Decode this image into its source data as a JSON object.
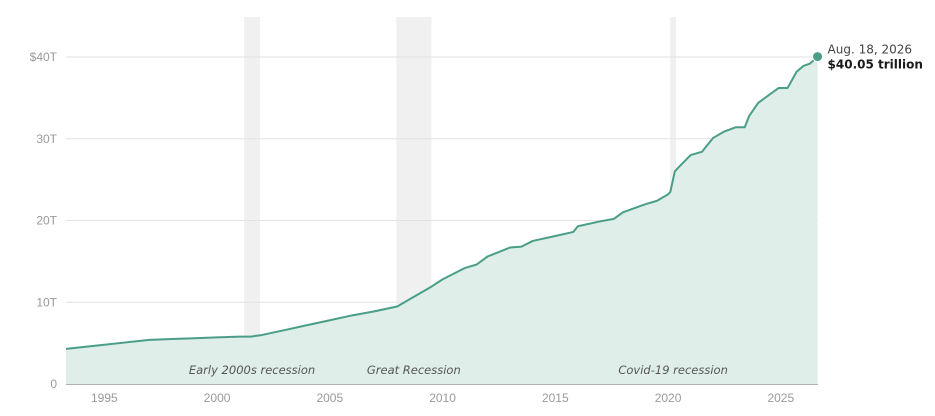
{
  "chart_data": {
    "type": "area",
    "title": "",
    "xlabel": "",
    "ylabel": "",
    "xlim": [
      1993.3,
      2026.65
    ],
    "ylim": [
      0,
      40
    ],
    "grid": true,
    "colors": {
      "line": "#4a9e88",
      "fill": "#dfeee9",
      "recession": "#f0f0f0",
      "grid": "#e2e2e2",
      "axis": "#b0b0b0"
    },
    "x_ticks": [
      {
        "value": 1995,
        "label": "1995"
      },
      {
        "value": 2000,
        "label": "2000"
      },
      {
        "value": 2005,
        "label": "2005"
      },
      {
        "value": 2010,
        "label": "2010"
      },
      {
        "value": 2015,
        "label": "2015"
      },
      {
        "value": 2020,
        "label": "2020"
      },
      {
        "value": 2025,
        "label": "2025"
      }
    ],
    "y_ticks": [
      {
        "value": 0,
        "label": "0"
      },
      {
        "value": 10,
        "label": "10T"
      },
      {
        "value": 20,
        "label": "20T"
      },
      {
        "value": 30,
        "label": "30T"
      },
      {
        "value": 40,
        "label": "$40T"
      }
    ],
    "recessions": [
      {
        "label": "Early 2000s recession",
        "start": 2001.2,
        "end": 2001.9
      },
      {
        "label": "Great Recession",
        "start": 2007.95,
        "end": 2009.5
      },
      {
        "label": "Covid-19 recession",
        "start": 2020.1,
        "end": 2020.35
      }
    ],
    "series": [
      {
        "unit": "trillion $",
        "x": [
          1993.3,
          1995,
          1996,
          1997,
          1998,
          1999,
          2000,
          2001,
          2001.5,
          2002,
          2003,
          2004,
          2005,
          2006,
          2007,
          2008,
          2008.5,
          2009,
          2009.5,
          2010,
          2011,
          2011.5,
          2012,
          2013,
          2013.5,
          2014,
          2015,
          2015.8,
          2016,
          2017,
          2017.6,
          2018,
          2019,
          2019.5,
          2020,
          2020.1,
          2020.3,
          2020.5,
          2021,
          2021.5,
          2022,
          2022.5,
          2023,
          2023.4,
          2023.6,
          2024,
          2024.5,
          2024.9,
          2025,
          2025.3,
          2025.5,
          2025.7,
          2026,
          2026.3,
          2026.63
        ],
        "y": [
          4.3,
          4.8,
          5.1,
          5.4,
          5.5,
          5.6,
          5.7,
          5.8,
          5.8,
          6.0,
          6.6,
          7.2,
          7.8,
          8.4,
          8.9,
          9.5,
          10.3,
          11.1,
          11.9,
          12.8,
          14.2,
          14.6,
          15.6,
          16.7,
          16.8,
          17.5,
          18.1,
          18.6,
          19.3,
          19.9,
          20.2,
          21.0,
          22.0,
          22.4,
          23.2,
          23.5,
          26.0,
          26.6,
          28.0,
          28.4,
          30.1,
          30.9,
          31.4,
          31.4,
          32.8,
          34.4,
          35.4,
          36.2,
          36.2,
          36.2,
          37.2,
          38.2,
          38.9,
          39.2,
          40.05
        ]
      }
    ],
    "annotation": {
      "x": 2026.63,
      "y": 40.05,
      "date": "Aug. 18, 2026",
      "value": "$40.05 trillion"
    }
  }
}
